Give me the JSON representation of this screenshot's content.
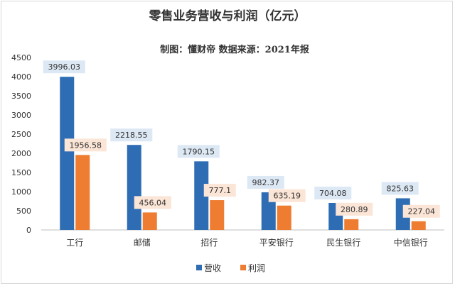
{
  "chart_data": {
    "type": "bar",
    "title": "零售业务营收与利润（亿元）",
    "subtitle": "制图：懂财帝    数据来源：2021年报",
    "categories": [
      "工行",
      "邮储",
      "招行",
      "平安银行",
      "民生银行",
      "中信银行"
    ],
    "series": [
      {
        "name": "营收",
        "color": "#2e6db4",
        "label_bg": "#dde8f5",
        "values": [
          3996.03,
          2218.55,
          1790.15,
          982.37,
          704.08,
          825.63
        ],
        "labels": [
          "3996.03",
          "2218.55",
          "1790.15",
          "982.37",
          "704.08",
          "825.63"
        ]
      },
      {
        "name": "利润",
        "color": "#ee7d31",
        "label_bg": "#fbe5d6",
        "values": [
          1956.58,
          456.04,
          777.1,
          635.19,
          280.89,
          227.04
        ],
        "labels": [
          "1956.58",
          "456.04",
          "777.1",
          "635.19",
          "280.89",
          "227.04"
        ]
      }
    ],
    "ylim": [
      0,
      4500
    ],
    "yticks": [
      "0",
      "500",
      "1000",
      "1500",
      "2000",
      "2500",
      "3000",
      "3500",
      "4000",
      "4500"
    ],
    "grid": false,
    "legend": "bottom"
  }
}
